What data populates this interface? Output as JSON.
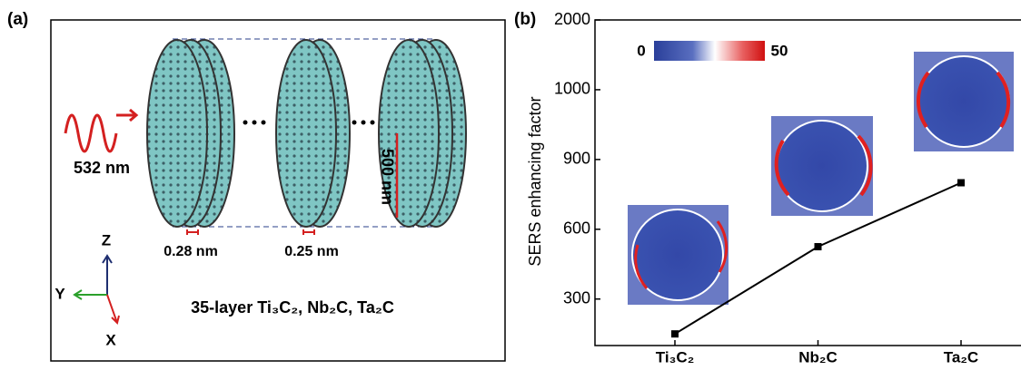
{
  "panel_labels": [
    "(a)",
    "(b)"
  ],
  "diagram": {
    "wavelength": "532 nm",
    "diameter": "500 nm",
    "gap_1": "0.28 nm",
    "gap_2": "0.25 nm",
    "axis_z": "Z",
    "axis_y": "Y",
    "axis_x": "X",
    "caption": "35-layer Ti₃C₂, Nb₂C, Ta₂C"
  },
  "chart_data": {
    "type": "line",
    "y_label": "SERS enhancing factor",
    "categories": [
      "Ti₃C₂",
      "Nb₂C",
      "Ta₂C"
    ],
    "series": [
      {
        "color": "#000000",
        "values": [
          150,
          525,
          800
        ]
      }
    ],
    "ylim": [
      100,
      2000
    ],
    "yticks": [
      300,
      600,
      900,
      1000,
      2000
    ],
    "y_scale": "tick-spaced",
    "colorbar": {
      "min": 0,
      "max": 50
    }
  }
}
